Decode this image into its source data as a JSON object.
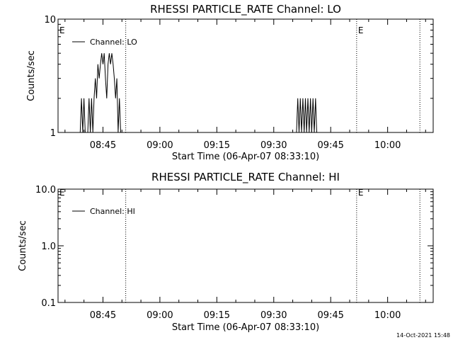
{
  "chart_data": [
    {
      "type": "line",
      "title": "RHESSI PARTICLE_RATE Channel: LO",
      "xlabel": "Start Time (06-Apr-07 08:33:10)",
      "ylabel": "Counts/sec",
      "yscale": "log",
      "ylim": [
        1,
        10
      ],
      "ytick_labels": [
        "10",
        "1"
      ],
      "xlim": [
        "08:33:10",
        "10:12:00"
      ],
      "xtick_labels": [
        "08:45",
        "09:00",
        "09:15",
        "09:30",
        "09:45",
        "10:00"
      ],
      "legend": "top-left",
      "series": [
        {
          "name": "Channel: LO",
          "points": [
            [
              "08:39:00",
              1
            ],
            [
              "08:39:20",
              2
            ],
            [
              "08:39:40",
              1
            ],
            [
              "08:40:00",
              2
            ],
            [
              "08:40:20",
              1
            ],
            [
              "08:41:00",
              1
            ],
            [
              "08:41:20",
              2
            ],
            [
              "08:41:40",
              1
            ],
            [
              "08:42:00",
              2
            ],
            [
              "08:42:20",
              1
            ],
            [
              "08:42:40",
              2
            ],
            [
              "08:43:00",
              3
            ],
            [
              "08:43:20",
              2
            ],
            [
              "08:43:40",
              4
            ],
            [
              "08:44:00",
              3
            ],
            [
              "08:44:20",
              4
            ],
            [
              "08:44:40",
              5
            ],
            [
              "08:45:00",
              4
            ],
            [
              "08:45:20",
              5
            ],
            [
              "08:45:40",
              3
            ],
            [
              "08:46:00",
              2
            ],
            [
              "08:46:20",
              4
            ],
            [
              "08:46:40",
              5
            ],
            [
              "08:47:00",
              4
            ],
            [
              "08:47:20",
              5
            ],
            [
              "08:47:40",
              4
            ],
            [
              "08:48:00",
              3
            ],
            [
              "08:48:20",
              2
            ],
            [
              "08:48:40",
              3
            ],
            [
              "08:49:00",
              1
            ],
            [
              "08:49:20",
              2
            ],
            [
              "08:49:40",
              1
            ],
            [
              "09:36:00",
              1
            ],
            [
              "09:36:20",
              2
            ],
            [
              "09:36:40",
              1
            ],
            [
              "09:37:00",
              2
            ],
            [
              "09:37:20",
              1
            ],
            [
              "09:37:40",
              2
            ],
            [
              "09:38:00",
              1
            ],
            [
              "09:38:20",
              2
            ],
            [
              "09:38:40",
              1
            ],
            [
              "09:39:00",
              2
            ],
            [
              "09:39:20",
              1
            ],
            [
              "09:39:40",
              2
            ],
            [
              "09:40:00",
              1
            ],
            [
              "09:40:20",
              2
            ],
            [
              "09:40:40",
              1
            ],
            [
              "09:41:00",
              2
            ],
            [
              "09:41:20",
              1
            ]
          ]
        }
      ],
      "markers": [
        {
          "label": "E",
          "time": "08:33:10"
        },
        {
          "label": "E",
          "time": "09:51:50"
        }
      ],
      "dotted_lines": [
        "08:51:00",
        "09:51:50",
        "10:08:30"
      ]
    },
    {
      "type": "line",
      "title": "RHESSI PARTICLE_RATE Channel: HI",
      "xlabel": "Start Time (06-Apr-07 08:33:10)",
      "ylabel": "Counts/sec",
      "yscale": "log",
      "ylim": [
        0.1,
        10
      ],
      "ytick_labels": [
        "10.0",
        "1.0",
        "0.1"
      ],
      "xlim": [
        "08:33:10",
        "10:12:00"
      ],
      "xtick_labels": [
        "08:45",
        "09:00",
        "09:15",
        "09:30",
        "09:45",
        "10:00"
      ],
      "legend": "top-left",
      "series": [
        {
          "name": "Channel: HI",
          "points": []
        }
      ],
      "markers": [
        {
          "label": "E",
          "time": "08:33:10"
        },
        {
          "label": "E",
          "time": "09:51:50"
        }
      ],
      "dotted_lines": [
        "08:51:00",
        "09:51:50",
        "10:08:30"
      ]
    }
  ],
  "footer_timestamp": "14-Oct-2021 15:48"
}
